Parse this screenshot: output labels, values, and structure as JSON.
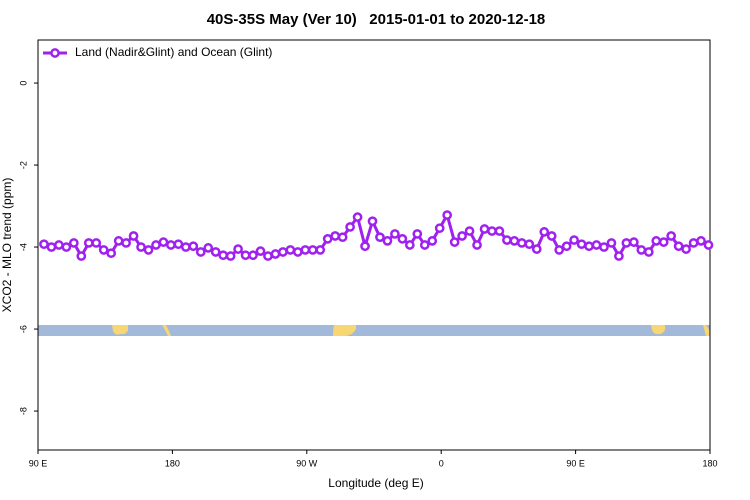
{
  "chart_data": {
    "type": "line",
    "title": "40S-35S May (Ver 10)   2015-01-01 to 2020-12-18",
    "xlabel": "Longitude (deg E)",
    "ylabel": "XCO2 - MLO trend (ppm)",
    "xlim": [
      90,
      540
    ],
    "ylim": [
      -8.95,
      1.05
    ],
    "xticks": [
      {
        "value": 90,
        "label": "90 E"
      },
      {
        "value": 180,
        "label": "180"
      },
      {
        "value": 270,
        "label": "90 W"
      },
      {
        "value": 360,
        "label": "0"
      },
      {
        "value": 450,
        "label": "90 E"
      },
      {
        "value": 540,
        "label": "180"
      }
    ],
    "yticks": [
      0,
      -2,
      -4,
      -6,
      -8
    ],
    "legend_position": "top-left",
    "x": [
      94,
      99,
      104,
      109,
      114,
      119,
      124,
      129,
      134,
      139,
      144,
      149,
      154,
      159,
      164,
      169,
      174,
      179,
      184,
      189,
      194,
      199,
      204,
      209,
      214,
      219,
      224,
      229,
      234,
      239,
      244,
      249,
      254,
      259,
      264,
      269,
      274,
      279,
      284,
      289,
      294,
      299,
      304,
      309,
      314,
      319,
      324,
      329,
      334,
      339,
      344,
      349,
      354,
      359,
      364,
      369,
      374,
      379,
      384,
      389,
      394,
      399,
      404,
      409,
      414,
      419,
      424,
      429,
      434,
      439,
      444,
      449,
      454,
      459,
      464,
      469,
      474,
      479,
      484,
      489,
      494,
      499,
      504,
      509,
      514,
      519,
      524,
      529,
      534,
      539
    ],
    "series": [
      {
        "name": "Land (Nadir&Glint) and Ocean (Glint)",
        "color": "#a020f0",
        "values": [
          -3.93,
          -4.0,
          -3.95,
          -4.0,
          -3.9,
          -4.22,
          -3.9,
          -3.9,
          -4.07,
          -4.15,
          -3.85,
          -3.9,
          -3.73,
          -4.0,
          -4.07,
          -3.95,
          -3.88,
          -3.95,
          -3.93,
          -4.0,
          -3.98,
          -4.12,
          -4.02,
          -4.12,
          -4.2,
          -4.22,
          -4.05,
          -4.2,
          -4.2,
          -4.1,
          -4.22,
          -4.17,
          -4.12,
          -4.07,
          -4.12,
          -4.07,
          -4.07,
          -4.07,
          -3.8,
          -3.73,
          -3.76,
          -3.51,
          -3.27,
          -3.98,
          -3.37,
          -3.76,
          -3.85,
          -3.68,
          -3.8,
          -3.95,
          -3.68,
          -3.95,
          -3.85,
          -3.54,
          -3.22,
          -3.88,
          -3.73,
          -3.61,
          -3.95,
          -3.56,
          -3.61,
          -3.61,
          -3.83,
          -3.85,
          -3.9,
          -3.93,
          -4.05,
          -3.63,
          -3.73,
          -4.07,
          -3.98,
          -3.83,
          -3.93,
          -3.98,
          -3.95,
          -4.0,
          -3.9,
          -4.22,
          -3.9,
          -3.88,
          -4.07,
          -4.12,
          -3.85,
          -3.88,
          -3.73,
          -3.98,
          -4.05,
          -3.9,
          -3.85,
          -3.95
        ]
      }
    ]
  }
}
